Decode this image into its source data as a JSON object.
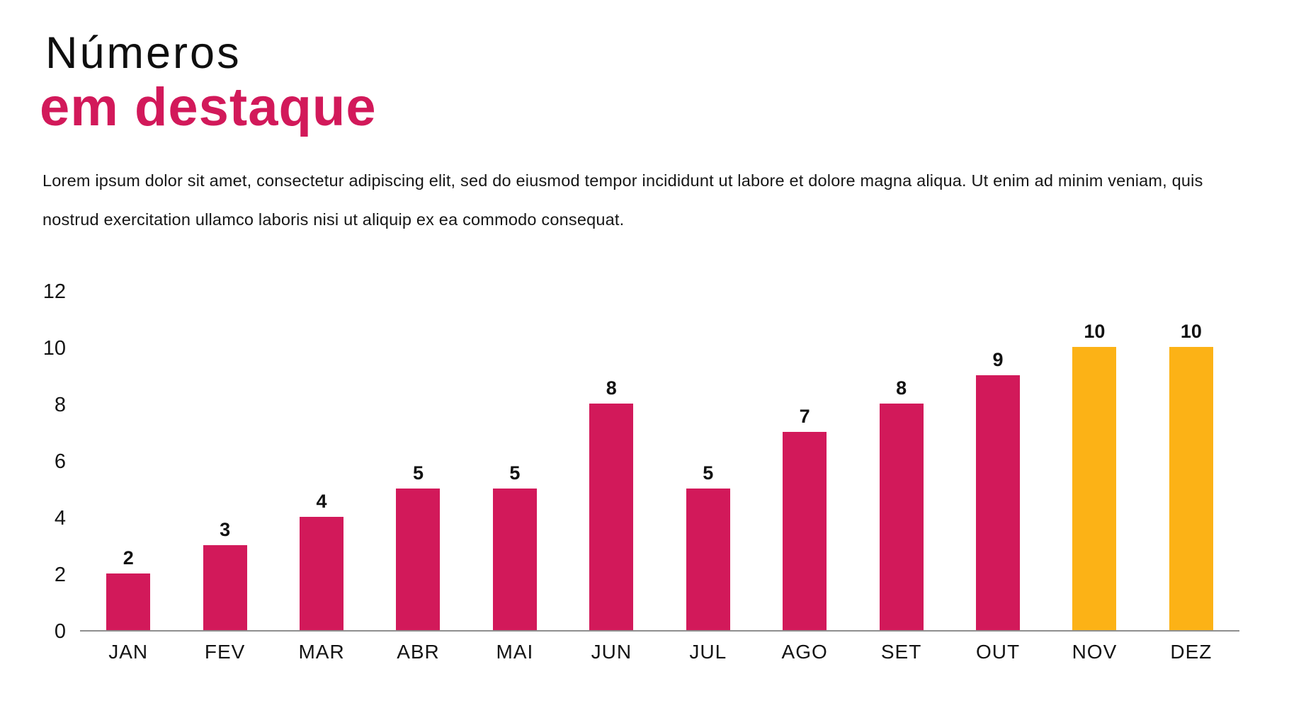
{
  "header": {
    "title_line1": "Números",
    "title_line2": "em destaque"
  },
  "intro_text": "Lorem ipsum dolor sit amet, consectetur adipiscing elit, sed do eiusmod tempor incididunt ut labore et dolore magna aliqua. Ut enim ad minim veniam, quis nostrud exercitation ullamco laboris nisi ut aliquip ex ea commodo consequat.",
  "colors": {
    "accent_crimson": "#d2195a",
    "highlight_yellow": "#fcb216",
    "text_black": "#111111",
    "axis_gray": "#8f8f8f",
    "background": "#ffffff"
  },
  "chart_data": {
    "type": "bar",
    "title": "",
    "xlabel": "",
    "ylabel": "",
    "categories": [
      "JAN",
      "FEV",
      "MAR",
      "ABR",
      "MAI",
      "JUN",
      "JUL",
      "AGO",
      "SET",
      "OUT",
      "NOV",
      "DEZ"
    ],
    "values": [
      2,
      3,
      4,
      5,
      5,
      8,
      5,
      7,
      8,
      9,
      10,
      10
    ],
    "data_labels": [
      2,
      3,
      4,
      5,
      5,
      8,
      5,
      7,
      8,
      9,
      10,
      10
    ],
    "bar_colors": [
      "#d2195a",
      "#d2195a",
      "#d2195a",
      "#d2195a",
      "#d2195a",
      "#d2195a",
      "#d2195a",
      "#d2195a",
      "#d2195a",
      "#d2195a",
      "#fcb216",
      "#fcb216"
    ],
    "highlighted_categories": [
      "NOV",
      "DEZ"
    ],
    "y_ticks": [
      0,
      2,
      4,
      6,
      8,
      10,
      12
    ],
    "ylim": [
      0,
      12
    ],
    "grid": false,
    "legend": false,
    "baseline_axis": true
  }
}
